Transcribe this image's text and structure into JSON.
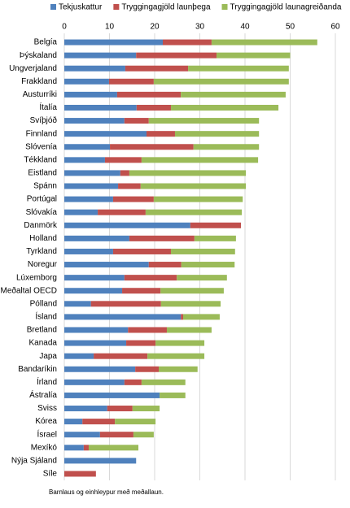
{
  "chart_data": {
    "type": "stacked_barh",
    "categories": [
      "Belgía",
      "Þýskaland",
      "Ungverjaland",
      "Frakkland",
      "Austurríki",
      "Ítalía",
      "Svíþjóð",
      "Finnland",
      "Slóvenía",
      "Tékkland",
      "Eistland",
      "Spánn",
      "Portúgal",
      "Slóvakía",
      "Danmörk",
      "Holland",
      "Tyrkland",
      "Noregur",
      "Lúxemborg",
      "Meðaltal OECD",
      "Pólland",
      "Ísland",
      "Bretland",
      "Kanada",
      "Japa",
      "Bandaríkin",
      "Írland",
      "Ástralía",
      "Sviss",
      "Kórea",
      "Ísrael",
      "Mexíkó",
      "Nýja Sjáland",
      "Síle"
    ],
    "series": [
      {
        "name": "Tekjuskattur",
        "color": "#4f81bd",
        "values": [
          21.8,
          15.9,
          13.5,
          9.9,
          11.7,
          16.0,
          13.3,
          18.2,
          10.1,
          9.0,
          12.4,
          11.9,
          10.8,
          7.4,
          27.9,
          14.4,
          10.8,
          18.7,
          13.3,
          12.8,
          5.9,
          25.8,
          14.1,
          13.7,
          6.5,
          15.7,
          13.3,
          21.1,
          9.5,
          4.0,
          7.9,
          4.3,
          15.9,
          0
        ]
      },
      {
        "name": "Tryggingagjöld launþega",
        "color": "#c0504d",
        "values": [
          10.8,
          17.8,
          13.9,
          9.9,
          14.1,
          7.6,
          5.4,
          6.3,
          18.5,
          8.1,
          2.0,
          5.0,
          9.0,
          10.6,
          11.2,
          14.4,
          12.8,
          7.2,
          11.6,
          8.5,
          15.5,
          0.5,
          8.6,
          6.5,
          11.9,
          5.2,
          3.8,
          0,
          5.6,
          7.2,
          7.4,
          1.1,
          0,
          7.0
        ]
      },
      {
        "name": "Tryggingagjöld launagreiðanda",
        "color": "#9bbb59",
        "values": [
          23.4,
          16.3,
          22.3,
          29.9,
          23.2,
          23.8,
          24.4,
          18.6,
          14.5,
          25.8,
          25.8,
          23.3,
          19.7,
          21.3,
          0,
          9.2,
          14.2,
          11.8,
          11.1,
          14.0,
          13.2,
          8.1,
          9.9,
          10.8,
          12.6,
          8.6,
          9.7,
          5.7,
          6.0,
          9.0,
          4.5,
          11.0,
          0,
          0
        ]
      }
    ],
    "xlim": [
      0,
      60
    ],
    "xticks": [
      0,
      10,
      20,
      30,
      40,
      50,
      60
    ],
    "grid": true,
    "note": "Barnlaus og einhleypur með meðallaun."
  }
}
